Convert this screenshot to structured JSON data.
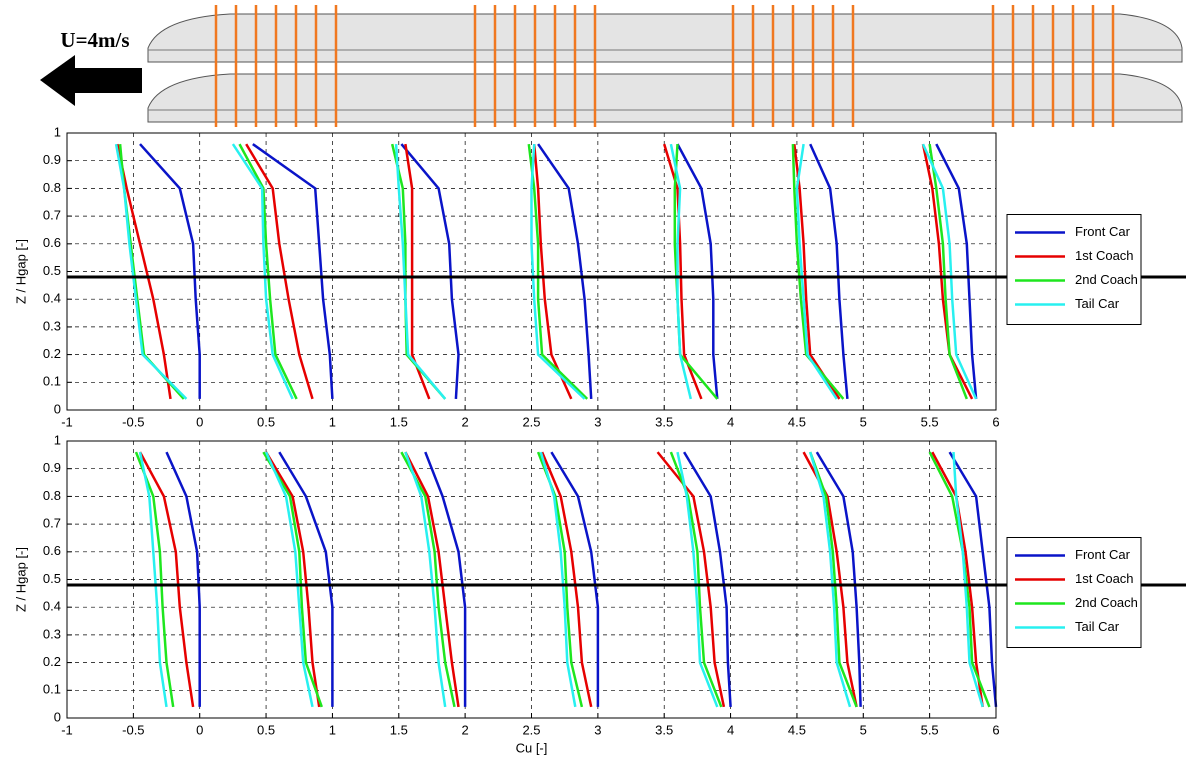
{
  "header": {
    "label": "U=4m/s"
  },
  "chart_data": [
    {
      "type": "line",
      "ylabel": "Z / Hgap [-]",
      "xlim": [
        -1,
        6
      ],
      "ylim": [
        0,
        1
      ],
      "xticks": [
        -1,
        -0.5,
        0,
        0.5,
        1,
        1.5,
        2,
        2.5,
        3,
        3.5,
        4,
        4.5,
        5,
        5.5,
        6
      ],
      "yticks": [
        0,
        0.1,
        0.2,
        0.3,
        0.4,
        0.5,
        0.6,
        0.7,
        0.8,
        0.9,
        1
      ],
      "grid": true,
      "legend": "right",
      "hline": 0.48,
      "y": [
        0.04,
        0.2,
        0.4,
        0.6,
        0.8,
        0.96,
        null,
        0.04,
        0.2,
        0.4,
        0.6,
        0.8,
        0.96,
        null,
        0.04,
        0.2,
        0.4,
        0.6,
        0.8,
        0.96,
        null,
        0.04,
        0.2,
        0.4,
        0.6,
        0.8,
        0.96,
        null,
        0.04,
        0.2,
        0.4,
        0.6,
        0.8,
        0.96,
        null,
        0.04,
        0.2,
        0.4,
        0.6,
        0.8,
        0.96,
        null,
        0.04,
        0.2,
        0.4,
        0.6,
        0.8,
        0.96
      ],
      "series": [
        {
          "name": "Front Car",
          "color": "#0a14c8",
          "x": [
            0,
            0,
            -0.03,
            -0.05,
            -0.15,
            -0.45,
            null,
            1.0,
            0.98,
            0.93,
            0.9,
            0.87,
            0.4,
            null,
            1.93,
            1.95,
            1.9,
            1.88,
            1.8,
            1.52,
            null,
            2.95,
            2.93,
            2.9,
            2.85,
            2.78,
            2.55,
            null,
            3.9,
            3.87,
            3.87,
            3.85,
            3.78,
            3.6,
            null,
            4.88,
            4.85,
            4.82,
            4.8,
            4.75,
            4.6,
            null,
            5.85,
            5.82,
            5.8,
            5.78,
            5.72,
            5.55
          ]
        },
        {
          "name": "1st Coach",
          "color": "#e60000",
          "x": [
            -0.22,
            -0.27,
            -0.35,
            -0.45,
            -0.55,
            -0.62,
            null,
            0.85,
            0.75,
            0.67,
            0.6,
            0.55,
            0.35,
            null,
            1.73,
            1.6,
            1.6,
            1.6,
            1.6,
            1.55,
            null,
            2.8,
            2.65,
            2.6,
            2.57,
            2.55,
            2.52,
            null,
            3.78,
            3.65,
            3.63,
            3.62,
            3.6,
            3.5,
            null,
            4.82,
            4.6,
            4.57,
            4.55,
            4.52,
            4.48,
            null,
            5.82,
            5.65,
            5.6,
            5.57,
            5.52,
            5.45
          ]
        },
        {
          "name": "2nd Coach",
          "color": "#1ee61e",
          "x": [
            -0.12,
            -0.42,
            -0.47,
            -0.52,
            -0.57,
            -0.6,
            null,
            0.73,
            0.57,
            0.53,
            0.5,
            0.48,
            0.3,
            null,
            1.85,
            1.56,
            1.55,
            1.55,
            1.53,
            1.45,
            null,
            2.92,
            2.58,
            2.55,
            2.55,
            2.52,
            2.48,
            null,
            3.9,
            3.62,
            3.6,
            3.58,
            3.58,
            3.6,
            null,
            4.85,
            4.57,
            4.53,
            4.5,
            4.48,
            4.47,
            null,
            5.78,
            5.65,
            5.62,
            5.6,
            5.55,
            5.5
          ]
        },
        {
          "name": "Tail Car",
          "color": "#28f0f0",
          "x": [
            -0.1,
            -0.43,
            -0.48,
            -0.53,
            -0.57,
            -0.63,
            null,
            0.7,
            0.55,
            0.5,
            0.48,
            0.47,
            0.25,
            null,
            1.85,
            1.57,
            1.55,
            1.53,
            1.5,
            1.48,
            null,
            2.9,
            2.55,
            2.52,
            2.5,
            2.5,
            2.52,
            null,
            3.7,
            3.62,
            3.6,
            3.6,
            3.62,
            3.55,
            null,
            4.8,
            4.58,
            4.55,
            4.52,
            4.5,
            4.55,
            null,
            5.85,
            5.7,
            5.67,
            5.65,
            5.6,
            5.45
          ]
        }
      ]
    },
    {
      "type": "line",
      "ylabel": "Z / Hgap [-]",
      "xlabel": "Cu [-]",
      "xlim": [
        -1,
        6
      ],
      "ylim": [
        0,
        1
      ],
      "xticks": [
        -1,
        -0.5,
        0,
        0.5,
        1,
        1.5,
        2,
        2.5,
        3,
        3.5,
        4,
        4.5,
        5,
        5.5,
        6
      ],
      "yticks": [
        0,
        0.1,
        0.2,
        0.3,
        0.4,
        0.5,
        0.6,
        0.7,
        0.8,
        0.9,
        1
      ],
      "grid": true,
      "legend": "right",
      "hline": 0.48,
      "y": [
        0.04,
        0.2,
        0.4,
        0.6,
        0.8,
        0.96,
        null,
        0.04,
        0.2,
        0.4,
        0.6,
        0.8,
        0.96,
        null,
        0.04,
        0.2,
        0.4,
        0.6,
        0.8,
        0.96,
        null,
        0.04,
        0.2,
        0.4,
        0.6,
        0.8,
        0.96,
        null,
        0.04,
        0.2,
        0.4,
        0.6,
        0.8,
        0.96,
        null,
        0.04,
        0.2,
        0.4,
        0.6,
        0.8,
        0.96,
        null,
        0.04,
        0.2,
        0.4,
        0.6,
        0.8,
        0.96
      ],
      "series": [
        {
          "name": "Front Car",
          "color": "#0a14c8",
          "x": [
            0,
            0,
            0,
            -0.02,
            -0.1,
            -0.25,
            null,
            1,
            1,
            1,
            0.95,
            0.8,
            0.6,
            null,
            2,
            2,
            2,
            1.95,
            1.83,
            1.7,
            null,
            3,
            3,
            3,
            2.95,
            2.85,
            2.65,
            null,
            4,
            3.98,
            3.97,
            3.92,
            3.85,
            3.65,
            null,
            4.98,
            4.97,
            4.95,
            4.92,
            4.85,
            4.65,
            null,
            6,
            5.97,
            5.95,
            5.9,
            5.85,
            5.65
          ]
        },
        {
          "name": "1st Coach",
          "color": "#e60000",
          "x": [
            -0.05,
            -0.1,
            -0.15,
            -0.18,
            -0.27,
            -0.45,
            null,
            0.9,
            0.85,
            0.82,
            0.78,
            0.7,
            0.5,
            null,
            1.95,
            1.9,
            1.85,
            1.8,
            1.72,
            1.55,
            null,
            2.95,
            2.88,
            2.85,
            2.8,
            2.72,
            2.58,
            null,
            3.95,
            3.88,
            3.85,
            3.8,
            3.72,
            3.45,
            null,
            4.95,
            4.88,
            4.85,
            4.8,
            4.73,
            4.55,
            null,
            5.9,
            5.85,
            5.82,
            5.77,
            5.7,
            5.52
          ]
        },
        {
          "name": "2nd Coach",
          "color": "#1ee61e",
          "x": [
            -0.2,
            -0.25,
            -0.28,
            -0.3,
            -0.35,
            -0.48,
            null,
            0.92,
            0.8,
            0.77,
            0.75,
            0.68,
            0.48,
            null,
            1.92,
            1.85,
            1.8,
            1.77,
            1.7,
            1.52,
            null,
            2.88,
            2.8,
            2.77,
            2.75,
            2.68,
            2.55,
            null,
            3.93,
            3.8,
            3.77,
            3.75,
            3.68,
            3.55,
            null,
            4.95,
            4.82,
            4.8,
            4.77,
            4.72,
            4.6,
            null,
            5.95,
            5.82,
            5.8,
            5.75,
            5.67,
            5.5
          ]
        },
        {
          "name": "Tail Car",
          "color": "#28f0f0",
          "x": [
            -0.25,
            -0.3,
            -0.32,
            -0.35,
            -0.38,
            -0.45,
            null,
            0.85,
            0.78,
            0.75,
            0.72,
            0.65,
            0.5,
            null,
            1.85,
            1.8,
            1.77,
            1.73,
            1.67,
            1.55,
            null,
            2.83,
            2.77,
            2.75,
            2.72,
            2.67,
            2.57,
            null,
            3.9,
            3.77,
            3.75,
            3.72,
            3.67,
            3.6,
            null,
            4.9,
            4.8,
            4.78,
            4.75,
            4.7,
            4.6,
            null,
            5.9,
            5.8,
            5.78,
            5.75,
            5.7,
            5.68
          ]
        }
      ]
    }
  ]
}
